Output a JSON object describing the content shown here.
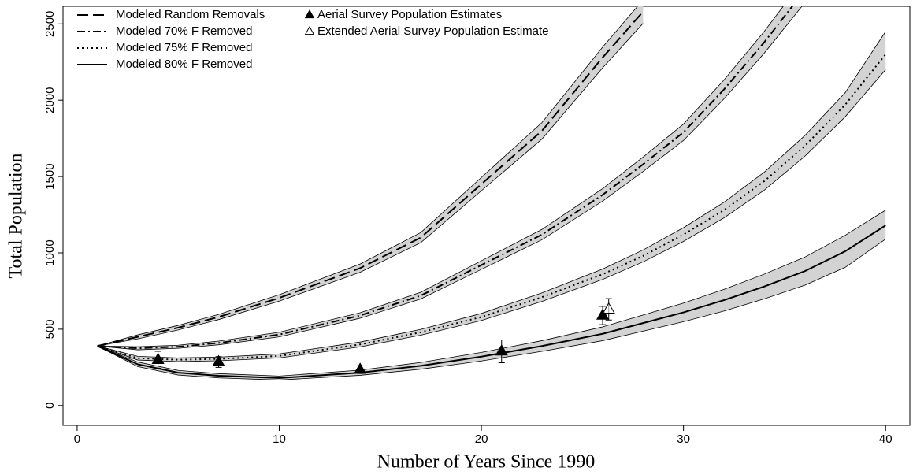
{
  "chart_data": {
    "type": "line",
    "xlabel": "Number of Years Since 1990",
    "ylabel": "Total Population",
    "xlim": [
      -0.7,
      41.2
    ],
    "ylim": [
      -130,
      2615
    ],
    "xticks": [
      0,
      10,
      20,
      30,
      40
    ],
    "yticks": [
      0,
      500,
      1000,
      1500,
      2000,
      2500
    ],
    "legend": "upper left",
    "band_color": "#d3d3d3",
    "x": [
      1,
      3,
      5,
      7,
      10,
      14,
      17,
      20,
      23,
      26,
      28,
      30,
      32,
      34,
      36,
      38,
      40
    ],
    "series": [
      {
        "name": "Modeled Random Removals",
        "color": "#000000",
        "linestyle": "dashed",
        "values": [
          390,
          450,
          510,
          580,
          705,
          900,
          1100,
          1450,
          1800,
          2280,
          2580,
          null,
          null,
          null,
          null,
          null,
          null
        ],
        "lower": [
          390,
          437,
          495,
          563,
          684,
          873,
          1067,
          1407,
          1746,
          2212,
          2503,
          null,
          null,
          null,
          null,
          null,
          null
        ],
        "upper": [
          390,
          463,
          525,
          597,
          726,
          927,
          1133,
          1494,
          1854,
          2348,
          2657,
          null,
          null,
          null,
          null,
          null,
          null
        ]
      },
      {
        "name": "Modeled 70% F Removed",
        "color": "#000000",
        "linestyle": "dashdot",
        "values": [
          390,
          375,
          385,
          410,
          465,
          590,
          720,
          920,
          1120,
          1380,
          1580,
          1790,
          2070,
          2380,
          2720,
          null,
          null
        ],
        "lower": [
          390,
          365,
          375,
          398,
          450,
          572,
          698,
          892,
          1086,
          1339,
          1533,
          1736,
          2008,
          2309,
          2638,
          null,
          null
        ],
        "upper": [
          390,
          385,
          395,
          422,
          480,
          608,
          742,
          948,
          1154,
          1421,
          1627,
          1844,
          2132,
          2451,
          2802,
          null,
          null
        ]
      },
      {
        "name": "Modeled 75% F Removed",
        "color": "#000000",
        "linestyle": "dotted",
        "values": [
          390,
          310,
          300,
          305,
          325,
          400,
          480,
          580,
          710,
          860,
          980,
          1120,
          1280,
          1470,
          1700,
          1970,
          2300
        ],
        "lower": [
          390,
          298,
          288,
          293,
          312,
          384,
          461,
          557,
          682,
          826,
          941,
          1075,
          1229,
          1411,
          1632,
          1891,
          2200
        ],
        "upper": [
          390,
          322,
          312,
          317,
          338,
          416,
          499,
          603,
          738,
          894,
          1019,
          1165,
          1331,
          1529,
          1768,
          2049,
          2450
        ]
      },
      {
        "name": "Modeled 80% F Removed",
        "color": "#000000",
        "linestyle": "solid",
        "values": [
          390,
          270,
          215,
          195,
          180,
          215,
          260,
          320,
          390,
          470,
          540,
          610,
          690,
          780,
          880,
          1010,
          1180
        ],
        "lower": [
          390,
          255,
          200,
          181,
          167,
          198,
          238,
          292,
          355,
          425,
          487,
          549,
          619,
          699,
          788,
          905,
          1090
        ],
        "upper": [
          390,
          285,
          230,
          209,
          193,
          232,
          282,
          348,
          425,
          515,
          593,
          671,
          761,
          861,
          972,
          1115,
          1280
        ]
      }
    ],
    "points": [
      {
        "name": "Aerial Survey Population Estimates",
        "marker": "filled-triangle",
        "x": [
          4,
          7,
          14,
          21,
          26
        ],
        "values": [
          300,
          285,
          235,
          355,
          590
        ],
        "errors": [
          55,
          35,
          25,
          75,
          60
        ]
      },
      {
        "name": "Extended Aerial Survey Population Estimate",
        "marker": "open-triangle",
        "x": [
          26.3
        ],
        "values": [
          630
        ],
        "errors": [
          70
        ]
      }
    ]
  }
}
